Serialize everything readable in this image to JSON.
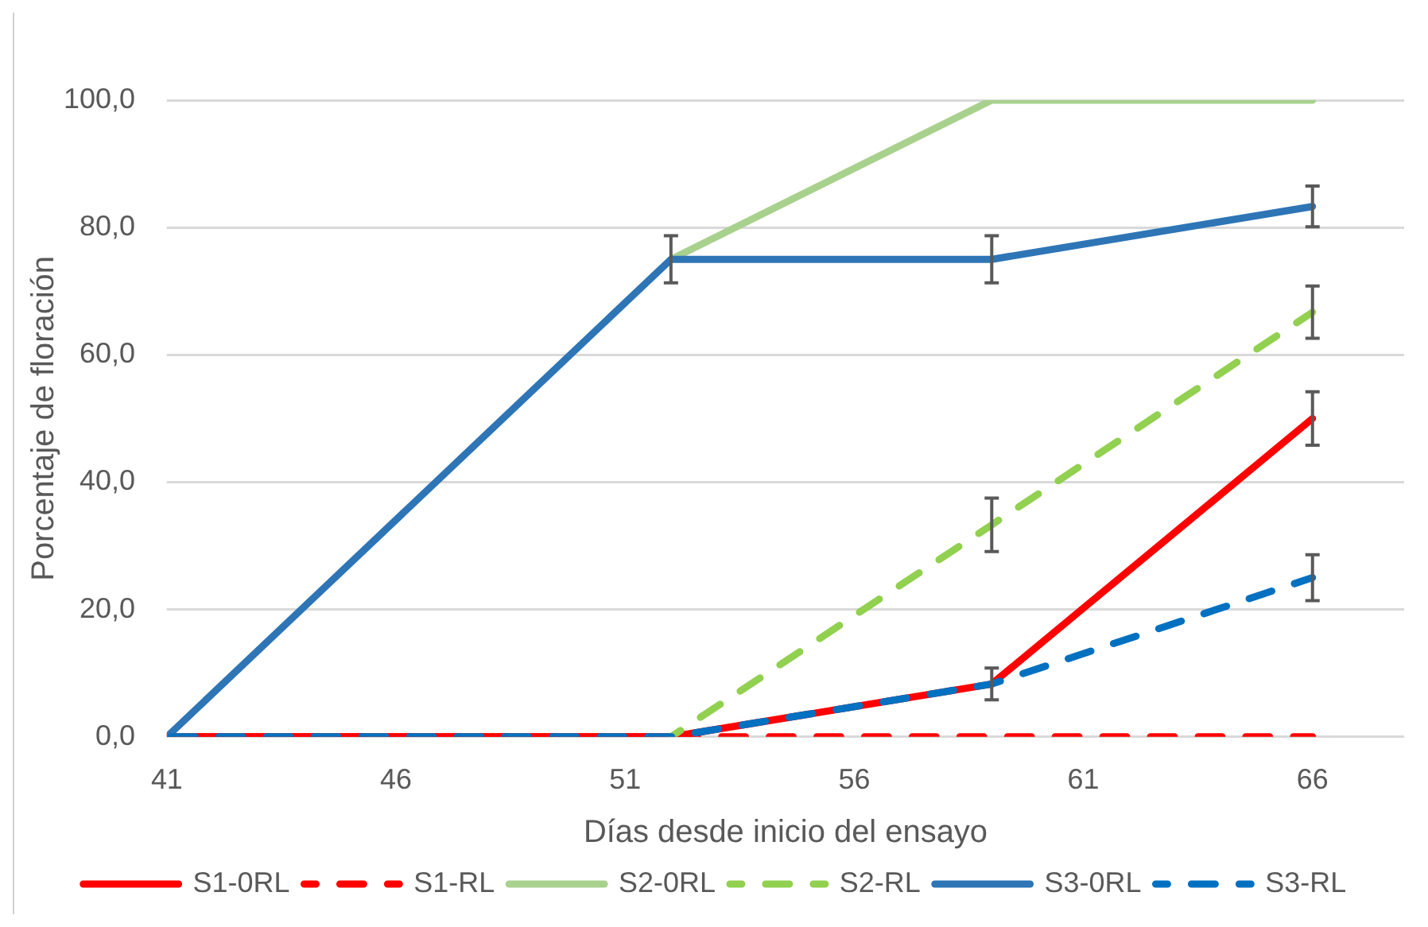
{
  "chart_data": {
    "type": "line",
    "xlabel": "Días desde inicio del ensayo",
    "ylabel": "Porcentaje de floración",
    "x": [
      41,
      52,
      59,
      66
    ],
    "series": [
      {
        "name": "S1-0RL",
        "color": "#ff0000",
        "line_style": "solid",
        "values": [
          0,
          0,
          8.3,
          50
        ],
        "errors": [
          null,
          null,
          2.5,
          4.2
        ]
      },
      {
        "name": "S1-RL",
        "color": "#ff0000",
        "line_style": "dashed",
        "values": [
          0,
          0,
          0,
          0
        ]
      },
      {
        "name": "S2-0RL",
        "color": "#a9d18e",
        "line_style": "solid",
        "values": [
          null,
          75,
          100,
          100
        ]
      },
      {
        "name": "S2-RL",
        "color": "#92d050",
        "line_style": "dashed",
        "values": [
          null,
          0,
          33.3,
          66.7
        ],
        "errors": [
          null,
          null,
          4.2,
          4.1
        ]
      },
      {
        "name": "S3-0RL",
        "color": "#2e75b6",
        "line_style": "solid",
        "values": [
          0,
          75,
          75,
          83.3
        ],
        "errors": [
          null,
          3.7,
          3.7,
          3.2
        ]
      },
      {
        "name": "S3-RL",
        "color": "#0070c0",
        "line_style": "dashed",
        "values": [
          0,
          0,
          8.3,
          25
        ],
        "errors": [
          null,
          null,
          null,
          3.6
        ]
      }
    ],
    "xlim": [
      41,
      68
    ],
    "xticks": [
      41,
      46,
      51,
      56,
      61,
      66
    ],
    "ylim": [
      0,
      100
    ],
    "yticks": [
      {
        "value": 0,
        "label": "0,0"
      },
      {
        "value": 20,
        "label": "20,0"
      },
      {
        "value": 40,
        "label": "40,0"
      },
      {
        "value": 60,
        "label": "60,0"
      },
      {
        "value": 80,
        "label": "80,0"
      },
      {
        "value": 100,
        "label": "100,0"
      }
    ],
    "grid": "y",
    "legend": "bottom"
  }
}
